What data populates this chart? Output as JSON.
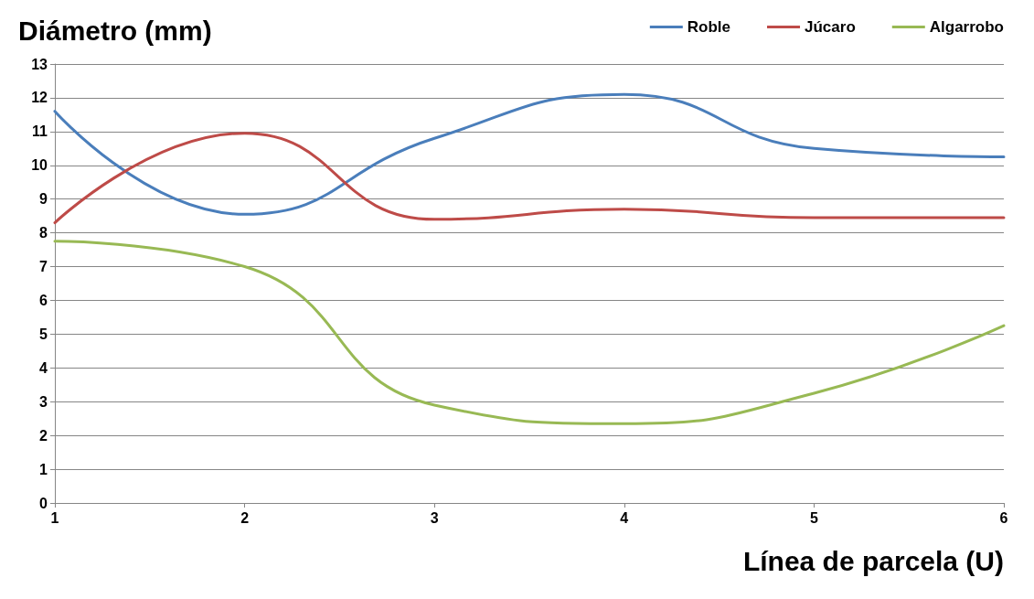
{
  "chart_data": {
    "type": "line",
    "xlabel": "Línea de parcela (U)",
    "ylabel": "Diámetro (mm)",
    "x": [
      1,
      2,
      3,
      4,
      5,
      6
    ],
    "xlim": [
      1,
      6
    ],
    "xticks": [
      1,
      2,
      3,
      4,
      5,
      6
    ],
    "ylim": [
      0,
      13
    ],
    "yticks": [
      0,
      1,
      2,
      3,
      4,
      5,
      6,
      7,
      8,
      9,
      10,
      11,
      12,
      13
    ],
    "grid": "y",
    "legend": "top right",
    "marker": "none",
    "line_style": "solid",
    "series": [
      {
        "name": "Roble",
        "color": "#4a7ebb",
        "values": [
          11.6,
          8.55,
          10.8,
          12.1,
          10.5,
          10.25
        ]
      },
      {
        "name": "Júcaro",
        "color": "#be4b48",
        "values": [
          8.3,
          10.95,
          8.4,
          8.7,
          8.45,
          8.45
        ]
      },
      {
        "name": "Algarrobo",
        "color": "#98b954",
        "values": [
          7.75,
          7.0,
          2.9,
          2.35,
          3.25,
          5.25
        ]
      }
    ]
  }
}
